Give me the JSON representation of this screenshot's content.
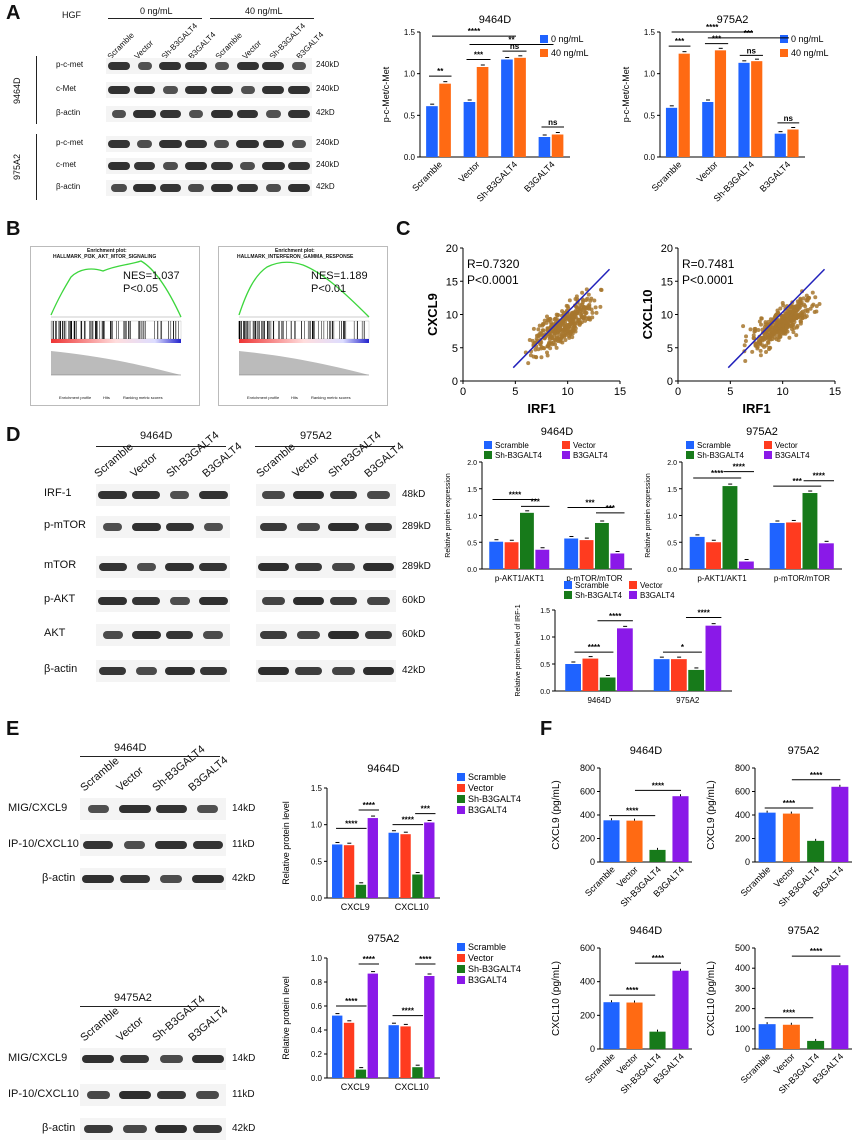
{
  "panels": {
    "A": "A",
    "B": "B",
    "C": "C",
    "D": "D",
    "E": "E",
    "F": "F"
  },
  "colors": {
    "blue": "#1f63ff",
    "orange": "#ff6a13",
    "green": "#177a1a",
    "purple": "#8a19e8",
    "red": "#ff3b1f",
    "scatter": "#a7772e",
    "line": "#2222bb"
  },
  "panelA": {
    "hgf_label": "HGF",
    "conc": [
      "0 ng/mL",
      "40 ng/mL"
    ],
    "lanes": [
      "Scramble",
      "Vector",
      "Sh-B3GALT4",
      "B3GALT4",
      "Scramble",
      "Vector",
      "Sh-B3GALT4",
      "B3GALT4"
    ],
    "cells": [
      "9464D",
      "975A2"
    ],
    "rows_9464D": [
      "p-c-met",
      "c-Met",
      "β-actin"
    ],
    "rows_975A2": [
      "p-c-met",
      "c-met",
      "β-actin"
    ],
    "sizes": [
      "240kD",
      "240kD",
      "42kD",
      "240kD",
      "240kD",
      "42kD"
    ]
  },
  "panelB": [
    {
      "title": "Enrichment plot:",
      "subtitle": "HALLMARK_PI3K_AKT_MTOR_SIGNALING",
      "nes": "NES=1.037",
      "p": "P<0.05",
      "legend": [
        "Enrichment profile",
        "Hits",
        "Ranking metric scores"
      ]
    },
    {
      "title": "Enrichment plot:",
      "subtitle": "HALLMARK_INTERFERON_GAMMA_RESPONSE",
      "nes": "NES=1.189",
      "p": "P<0.01",
      "legend": [
        "Enrichment profile",
        "Hits",
        "Ranking metric scores"
      ]
    }
  ],
  "panelD": {
    "cells": [
      "9464D",
      "975A2"
    ],
    "lanes": [
      "Scramble",
      "Vector",
      "Sh-B3GALT4",
      "B3GALT4"
    ],
    "rows": [
      "IRF-1",
      "p-mTOR",
      "mTOR",
      "p-AKT",
      "AKT",
      "β-actin"
    ],
    "sizes": [
      "48kD",
      "289kD",
      "289kD",
      "60kD",
      "60kD",
      "42kD"
    ]
  },
  "panelE": {
    "blocks": [
      {
        "cell": "9464D",
        "rows": [
          "MIG/CXCL9",
          "IP-10/CXCL10",
          "β-actin"
        ],
        "sizes": [
          "14kD",
          "11kD",
          "42kD"
        ]
      },
      {
        "cell": "9475A2",
        "rows": [
          "MIG/CXCL9",
          "IP-10/CXCL10",
          "β-actin"
        ],
        "sizes": [
          "14kD",
          "11kD",
          "42kD"
        ]
      }
    ],
    "lanes": [
      "Scramble",
      "Vector",
      "Sh-B3GALT4",
      "B3GALT4"
    ]
  },
  "chart_data": [
    {
      "id": "A1",
      "type": "bar",
      "title": "9464D",
      "ylabel": "p-c-Met/c-Met",
      "ylim": [
        0,
        1.5
      ],
      "yticks": [
        "0.0",
        "0.5",
        "1.0",
        "1.5"
      ],
      "categories": [
        "Scramble",
        "Vector",
        "Sh-B3GALT4",
        "B3GALT4"
      ],
      "series": [
        {
          "name": "0 ng/mL",
          "values": [
            0.61,
            0.66,
            1.17,
            0.24
          ],
          "color": "blue"
        },
        {
          "name": "40 ng/mL",
          "values": [
            0.88,
            1.08,
            1.19,
            0.27
          ],
          "color": "orange"
        }
      ],
      "annotations": [
        "**",
        "***",
        "ns",
        "ns",
        "****",
        "**"
      ]
    },
    {
      "id": "A2",
      "type": "bar",
      "title": "975A2",
      "ylabel": "p-c-Met/c-Met",
      "ylim": [
        0,
        1.5
      ],
      "yticks": [
        "0.0",
        "0.5",
        "1.0",
        "1.5"
      ],
      "categories": [
        "Scramble",
        "Vector",
        "Sh-B3GALT4",
        "B3GALT4"
      ],
      "series": [
        {
          "name": "0 ng/mL",
          "values": [
            0.59,
            0.66,
            1.13,
            0.28
          ],
          "color": "blue"
        },
        {
          "name": "40 ng/mL",
          "values": [
            1.24,
            1.28,
            1.15,
            0.33
          ],
          "color": "orange"
        }
      ],
      "annotations": [
        "***",
        "***",
        "ns",
        "ns",
        "****",
        "***"
      ]
    },
    {
      "id": "C1",
      "type": "scatter",
      "xlabel": "IRF1",
      "ylabel": "CXCL9",
      "xlim": [
        0,
        15
      ],
      "ylim": [
        0,
        20
      ],
      "xticks": [
        "0",
        "5",
        "10",
        "15"
      ],
      "yticks": [
        "0",
        "5",
        "10",
        "15",
        "20"
      ],
      "r": "R=0.7320",
      "p": "P<0.0001"
    },
    {
      "id": "C2",
      "type": "scatter",
      "xlabel": "IRF1",
      "ylabel": "CXCL10",
      "xlim": [
        0,
        15
      ],
      "ylim": [
        0,
        20
      ],
      "xticks": [
        "0",
        "5",
        "10",
        "15"
      ],
      "yticks": [
        "0",
        "5",
        "10",
        "15",
        "20"
      ],
      "r": "R=0.7481",
      "p": "P<0.0001"
    },
    {
      "id": "D1",
      "type": "bar",
      "title": "9464D",
      "ylabel": "Relative protein expression",
      "ylim": [
        0,
        2.0
      ],
      "yticks": [
        "0.0",
        "0.5",
        "1.0",
        "1.5",
        "2.0"
      ],
      "categories": [
        "p-AKT1/AKT1",
        "p-mTOR/mTOR"
      ],
      "series": [
        {
          "name": "Scramble",
          "values": [
            0.51,
            0.57
          ],
          "color": "blue"
        },
        {
          "name": "Vector",
          "values": [
            0.5,
            0.54
          ],
          "color": "red"
        },
        {
          "name": "Sh-B3GALT4",
          "values": [
            1.05,
            0.86
          ],
          "color": "green"
        },
        {
          "name": "B3GALT4",
          "values": [
            0.36,
            0.29
          ],
          "color": "purple"
        }
      ],
      "annotations": [
        "****",
        "***",
        "***",
        "***"
      ]
    },
    {
      "id": "D2",
      "type": "bar",
      "title": "975A2",
      "ylabel": "Relative protein expression",
      "ylim": [
        0,
        2.0
      ],
      "yticks": [
        "0.0",
        "0.5",
        "1.0",
        "1.5",
        "2.0"
      ],
      "categories": [
        "p-AKT1/AKT1",
        "p-mTOR/mTOR"
      ],
      "series": [
        {
          "name": "Scramble",
          "values": [
            0.6,
            0.86
          ],
          "color": "blue"
        },
        {
          "name": "Vector",
          "values": [
            0.5,
            0.87
          ],
          "color": "red"
        },
        {
          "name": "Sh-B3GALT4",
          "values": [
            1.55,
            1.42
          ],
          "color": "green"
        },
        {
          "name": "B3GALT4",
          "values": [
            0.14,
            0.48
          ],
          "color": "purple"
        }
      ],
      "annotations": [
        "****",
        "****",
        "***",
        "****"
      ]
    },
    {
      "id": "D3",
      "type": "bar",
      "ylabel": "Relative protein level of IRF-1",
      "ylim": [
        0,
        1.5
      ],
      "yticks": [
        "0.0",
        "0.5",
        "1.0",
        "1.5"
      ],
      "categories": [
        "9464D",
        "975A2"
      ],
      "series": [
        {
          "name": "Scramble",
          "values": [
            0.5,
            0.59
          ],
          "color": "blue"
        },
        {
          "name": "Vector",
          "values": [
            0.6,
            0.59
          ],
          "color": "red"
        },
        {
          "name": "Sh-B3GALT4",
          "values": [
            0.25,
            0.39
          ],
          "color": "green"
        },
        {
          "name": "B3GALT4",
          "values": [
            1.16,
            1.21
          ],
          "color": "purple"
        }
      ],
      "annotations": [
        "****",
        "****",
        "*",
        "****"
      ]
    },
    {
      "id": "E1",
      "type": "bar",
      "title": "9464D",
      "ylabel": "Relative protein level",
      "ylim": [
        0,
        1.5
      ],
      "yticks": [
        "0.0",
        "0.5",
        "1.0",
        "1.5"
      ],
      "categories": [
        "CXCL9",
        "CXCL10"
      ],
      "series": [
        {
          "name": "Scramble",
          "values": [
            0.73,
            0.89
          ],
          "color": "blue"
        },
        {
          "name": "Vector",
          "values": [
            0.72,
            0.87
          ],
          "color": "red"
        },
        {
          "name": "Sh-B3GALT4",
          "values": [
            0.18,
            0.32
          ],
          "color": "green"
        },
        {
          "name": "B3GALT4",
          "values": [
            1.09,
            1.03
          ],
          "color": "purple"
        }
      ],
      "annotations": [
        "****",
        "****",
        "****",
        "***"
      ]
    },
    {
      "id": "E2",
      "type": "bar",
      "title": "975A2",
      "ylabel": "Relative protein level",
      "ylim": [
        0,
        1.0
      ],
      "yticks": [
        "0.0",
        "0.2",
        "0.4",
        "0.6",
        "0.8",
        "1.0"
      ],
      "categories": [
        "CXCL9",
        "CXCL10"
      ],
      "series": [
        {
          "name": "Scramble",
          "values": [
            0.52,
            0.44
          ],
          "color": "blue"
        },
        {
          "name": "Vector",
          "values": [
            0.46,
            0.43
          ],
          "color": "red"
        },
        {
          "name": "Sh-B3GALT4",
          "values": [
            0.07,
            0.09
          ],
          "color": "green"
        },
        {
          "name": "B3GALT4",
          "values": [
            0.87,
            0.85
          ],
          "color": "purple"
        }
      ],
      "annotations": [
        "****",
        "****",
        "****",
        "****"
      ]
    },
    {
      "id": "F1",
      "type": "bar",
      "title": "9464D",
      "ylabel": "CXCL9 (pg/mL)",
      "ylim": [
        0,
        800
      ],
      "yticks": [
        "0",
        "200",
        "400",
        "600",
        "800"
      ],
      "categories": [
        "Scramble",
        "Vector",
        "Sh-B3GALT4",
        "B3GALT4"
      ],
      "values": [
        355,
        352,
        103,
        560
      ],
      "colors": [
        "blue",
        "orange",
        "green",
        "purple"
      ],
      "annotations": [
        "****",
        "****"
      ]
    },
    {
      "id": "F2",
      "type": "bar",
      "title": "975A2",
      "ylabel": "CXCL9 (pg/mL)",
      "ylim": [
        0,
        800
      ],
      "yticks": [
        "0",
        "200",
        "400",
        "600",
        "800"
      ],
      "categories": [
        "Scramble",
        "Vector",
        "Sh-B3GALT4",
        "B3GALT4"
      ],
      "values": [
        420,
        412,
        180,
        640
      ],
      "colors": [
        "blue",
        "orange",
        "green",
        "purple"
      ],
      "annotations": [
        "****",
        "****"
      ]
    },
    {
      "id": "F3",
      "type": "bar",
      "title": "9464D",
      "ylabel": "CXCL10 (pg/mL)",
      "ylim": [
        0,
        600
      ],
      "yticks": [
        "0",
        "200",
        "400",
        "600"
      ],
      "categories": [
        "Scramble",
        "Vector",
        "Sh-B3GALT4",
        "B3GALT4"
      ],
      "values": [
        278,
        276,
        103,
        465
      ],
      "colors": [
        "blue",
        "orange",
        "green",
        "purple"
      ],
      "annotations": [
        "****",
        "****"
      ]
    },
    {
      "id": "F4",
      "type": "bar",
      "title": "975A2",
      "ylabel": "CXCL10 (pg/mL)",
      "ylim": [
        0,
        500
      ],
      "yticks": [
        "0",
        "100",
        "200",
        "300",
        "400",
        "500"
      ],
      "categories": [
        "Scramble",
        "Vector",
        "Sh-B3GALT4",
        "B3GALT4"
      ],
      "values": [
        123,
        120,
        40,
        415
      ],
      "colors": [
        "blue",
        "orange",
        "green",
        "purple"
      ],
      "annotations": [
        "****",
        "****"
      ]
    }
  ]
}
